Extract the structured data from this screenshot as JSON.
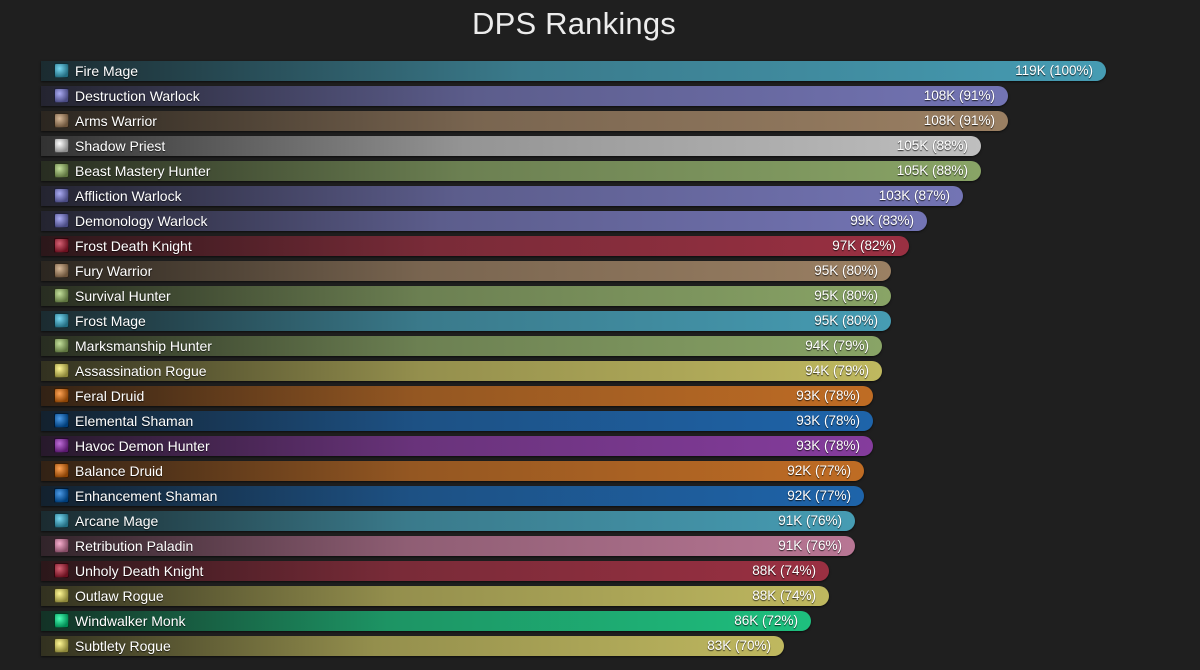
{
  "chart_data": {
    "type": "bar",
    "orientation": "horizontal",
    "title": "DPS Rankings",
    "xlabel": "",
    "ylabel": "",
    "xlim": [
      0,
      119
    ],
    "unit": "K",
    "grid": false,
    "legend": "none",
    "categories": [
      "Fire Mage",
      "Destruction Warlock",
      "Arms Warrior",
      "Shadow Priest",
      "Beast Mastery Hunter",
      "Affliction Warlock",
      "Demonology Warlock",
      "Frost Death Knight",
      "Fury Warrior",
      "Survival Hunter",
      "Frost Mage",
      "Marksmanship Hunter",
      "Assassination Rogue",
      "Feral Druid",
      "Elemental Shaman",
      "Havoc Demon Hunter",
      "Balance Druid",
      "Enhancement Shaman",
      "Arcane Mage",
      "Retribution Paladin",
      "Unholy Death Knight",
      "Outlaw Rogue",
      "Windwalker Monk",
      "Subtlety Rogue"
    ],
    "values": [
      119,
      108,
      108,
      105,
      105,
      103,
      99,
      97,
      95,
      95,
      95,
      94,
      94,
      93,
      93,
      93,
      92,
      92,
      91,
      91,
      88,
      88,
      86,
      83
    ],
    "percents": [
      100,
      91,
      91,
      88,
      88,
      87,
      83,
      82,
      80,
      80,
      80,
      79,
      79,
      78,
      78,
      78,
      77,
      77,
      76,
      76,
      74,
      74,
      72,
      70
    ],
    "value_labels": [
      "119K",
      "108K",
      "108K",
      "105K",
      "105K",
      "103K",
      "99K",
      "97K",
      "95K",
      "95K",
      "95K",
      "94K",
      "94K",
      "93K",
      "93K",
      "93K",
      "92K",
      "92K",
      "91K",
      "91K",
      "88K",
      "88K",
      "86K",
      "83K"
    ],
    "percent_labels": [
      "(100%)",
      "(91%)",
      "(91%)",
      "(88%)",
      "(88%)",
      "(87%)",
      "(83%)",
      "(82%)",
      "(80%)",
      "(80%)",
      "(80%)",
      "(79%)",
      "(79%)",
      "(78%)",
      "(78%)",
      "(78%)",
      "(77%)",
      "(77%)",
      "(76%)",
      "(76%)",
      "(74%)",
      "(74%)",
      "(72%)",
      "(70%)"
    ],
    "colors": [
      "#3fc7eb",
      "#8788ee",
      "#c69b6d",
      "#ffffff",
      "#aad372",
      "#8788ee",
      "#8788ee",
      "#c41e3a",
      "#c69b6d",
      "#aad372",
      "#3fc7eb",
      "#aad372",
      "#fff468",
      "#ff7c0a",
      "#0070dd",
      "#a330c9",
      "#ff7c0a",
      "#0070dd",
      "#3fc7eb",
      "#f48cba",
      "#c41e3a",
      "#fff468",
      "#00ff98",
      "#fff468"
    ],
    "icon_names": [
      "fire-mage-icon",
      "destruction-warlock-icon",
      "arms-warrior-icon",
      "shadow-priest-icon",
      "beast-mastery-hunter-icon",
      "affliction-warlock-icon",
      "demonology-warlock-icon",
      "frost-death-knight-icon",
      "fury-warrior-icon",
      "survival-hunter-icon",
      "frost-mage-icon",
      "marksmanship-hunter-icon",
      "assassination-rogue-icon",
      "feral-druid-icon",
      "elemental-shaman-icon",
      "havoc-demon-hunter-icon",
      "balance-druid-icon",
      "enhancement-shaman-icon",
      "arcane-mage-icon",
      "retribution-paladin-icon",
      "unholy-death-knight-icon",
      "outlaw-rogue-icon",
      "windwalker-monk-icon",
      "subtlety-rogue-icon"
    ]
  }
}
